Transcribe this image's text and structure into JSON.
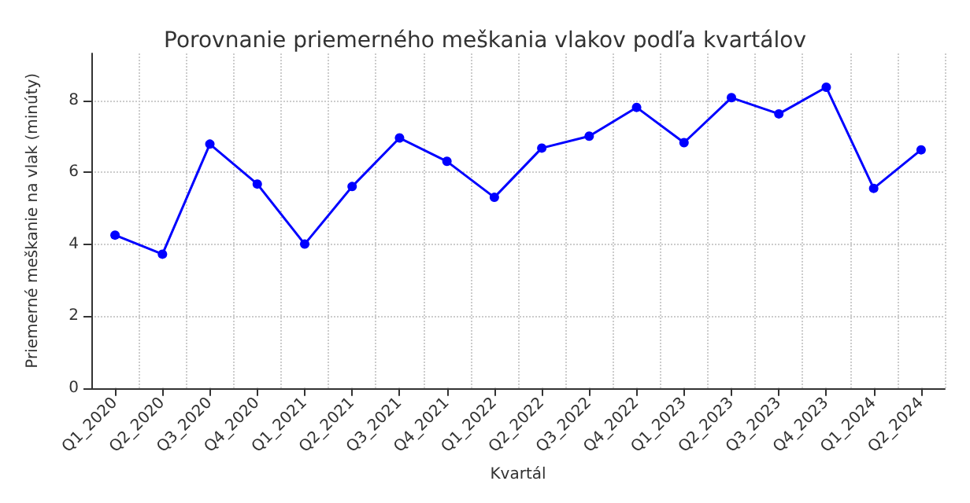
{
  "chart_data": {
    "type": "line",
    "title": "Porovnanie priemerného meškania vlakov podľa kvartálov",
    "xlabel": "Kvartál",
    "ylabel": "Priemerné meškanie na vlak (minúty)",
    "categories": [
      "Q1_2020",
      "Q2_2020",
      "Q3_2020",
      "Q4_2020",
      "Q1_2021",
      "Q2_2021",
      "Q3_2021",
      "Q4_2021",
      "Q1_2022",
      "Q2_2022",
      "Q3_2022",
      "Q4_2022",
      "Q1_2023",
      "Q2_2023",
      "Q3_2023",
      "Q4_2023",
      "Q1_2024",
      "Q2_2024"
    ],
    "series": [
      {
        "color": "#0000ff",
        "values": [
          4.25,
          3.72,
          6.78,
          5.67,
          4.0,
          5.6,
          6.95,
          6.3,
          5.3,
          6.67,
          7.0,
          7.8,
          6.82,
          8.07,
          7.62,
          8.36,
          5.55,
          6.62
        ]
      }
    ],
    "ylim": [
      0,
      9.3
    ],
    "yticks": [
      0,
      2,
      4,
      6,
      8
    ],
    "grid": true,
    "marker": "circle",
    "line_style": "solid"
  }
}
